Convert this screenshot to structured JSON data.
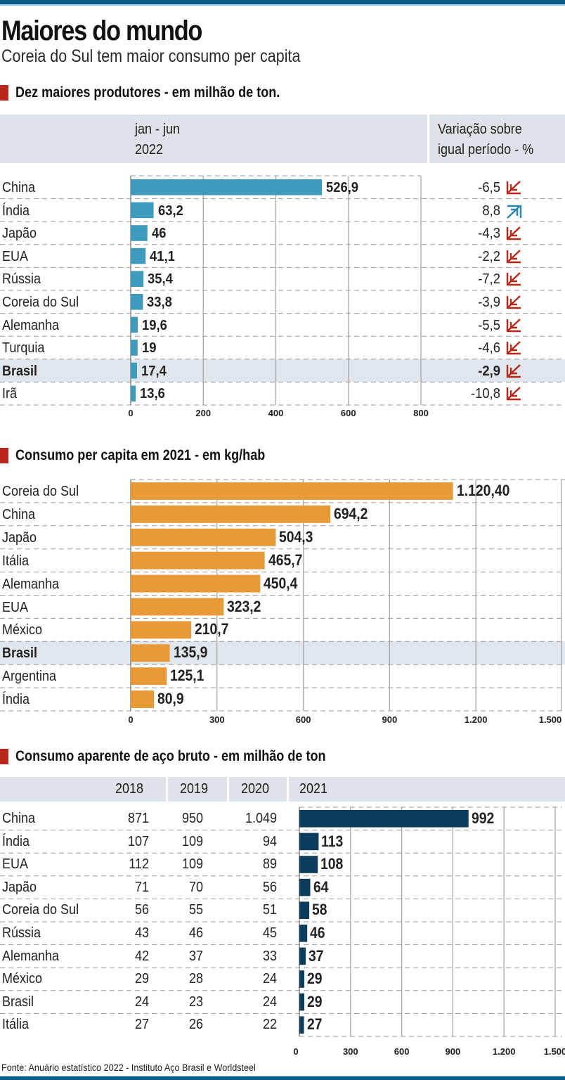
{
  "header": {
    "title": "Maiores do mundo",
    "subtitle": "Coreia do Sul tem maior consumo per capita"
  },
  "colors": {
    "topbar": "#0b5c87",
    "section_marker": "#b8281a",
    "band": "#dde3e9",
    "chart1_bar": "#3e9bbd",
    "chart2_bar": "#e89a36",
    "chart3_bar": "#0c3d5c",
    "arrow_down": "#b8281a",
    "arrow_up": "#2c86b0"
  },
  "footer": {
    "source": "Fonte: Anuário estatístico 2022 - Instituto Aço Brasil e Worldsteel"
  },
  "chart_data": [
    {
      "type": "bar",
      "orientation": "horizontal",
      "title": "Dez maiores produtores - em milhão de ton.",
      "column_header_1": "jan - jun",
      "column_header_2": "2022",
      "variation_header_1": "Variação sobre",
      "variation_header_2": "igual período - %",
      "categories": [
        "China",
        "Índia",
        "Japão",
        "EUA",
        "Rússia",
        "Coreia do Sul",
        "Alemanha",
        "Turquia",
        "Brasil",
        "Irã"
      ],
      "values": [
        526.9,
        63.2,
        46,
        41.1,
        35.4,
        33.8,
        19.6,
        19,
        17.4,
        13.6
      ],
      "value_labels": [
        "526,9",
        "63,2",
        "46",
        "41,1",
        "35,4",
        "33,8",
        "19,6",
        "19",
        "17,4",
        "13,6"
      ],
      "variation": [
        -6.5,
        8.8,
        -4.3,
        -2.2,
        -7.2,
        -3.9,
        -5.5,
        -4.6,
        -2.9,
        -10.8
      ],
      "variation_labels": [
        "-6,5",
        "8,8",
        "-4,3",
        "-2,2",
        "-7,2",
        "-3,9",
        "-5,5",
        "-4,6",
        "-2,9",
        "-10,8"
      ],
      "variation_direction": [
        "down",
        "up",
        "down",
        "down",
        "down",
        "down",
        "down",
        "down",
        "down",
        "down"
      ],
      "highlight": "Brasil",
      "xlim": [
        0,
        800
      ],
      "xticks": [
        0,
        200,
        400,
        600,
        800
      ],
      "xtick_labels": [
        "0",
        "200",
        "400",
        "600",
        "800"
      ],
      "grid": true
    },
    {
      "type": "bar",
      "orientation": "horizontal",
      "title": "Consumo per capita em 2021 - em kg/hab",
      "categories": [
        "Coreia do Sul",
        "China",
        "Japão",
        "Itália",
        "Alemanha",
        "EUA",
        "México",
        "Brasil",
        "Argentina",
        "Índia"
      ],
      "values": [
        1120.4,
        694.2,
        504.3,
        465.7,
        450.4,
        323.2,
        210.7,
        135.9,
        125.1,
        80.9
      ],
      "value_labels": [
        "1.120,40",
        "694,2",
        "504,3",
        "465,7",
        "450,4",
        "323,2",
        "210,7",
        "135,9",
        "125,1",
        "80,9"
      ],
      "highlight": "Brasil",
      "xlim": [
        0,
        1500
      ],
      "xticks": [
        0,
        300,
        600,
        900,
        1200,
        1500
      ],
      "xtick_labels": [
        "0",
        "300",
        "600",
        "900",
        "1.200",
        "1.500"
      ],
      "grid": true
    },
    {
      "type": "table",
      "title": "Consumo aparente de aço bruto - em milhão de ton",
      "columns": [
        "2018",
        "2019",
        "2020",
        "2021"
      ],
      "categories": [
        "China",
        "Índia",
        "EUA",
        "Japão",
        "Coreia do Sul",
        "Rússia",
        "Alemanha",
        "México",
        "Brasil",
        "Itália"
      ],
      "rows": [
        {
          "country": "China",
          "y2018": "871",
          "y2019": "950",
          "y2020": "1.049",
          "y2021": 992,
          "y2021_label": "992"
        },
        {
          "country": "Índia",
          "y2018": "107",
          "y2019": "109",
          "y2020": "94",
          "y2021": 113,
          "y2021_label": "113"
        },
        {
          "country": "EUA",
          "y2018": "112",
          "y2019": "109",
          "y2020": "89",
          "y2021": 108,
          "y2021_label": "108"
        },
        {
          "country": "Japão",
          "y2018": "71",
          "y2019": "70",
          "y2020": "56",
          "y2021": 64,
          "y2021_label": "64"
        },
        {
          "country": "Coreia do Sul",
          "y2018": "56",
          "y2019": "55",
          "y2020": "51",
          "y2021": 58,
          "y2021_label": "58"
        },
        {
          "country": "Rússia",
          "y2018": "43",
          "y2019": "46",
          "y2020": "45",
          "y2021": 46,
          "y2021_label": "46"
        },
        {
          "country": "Alemanha",
          "y2018": "42",
          "y2019": "37",
          "y2020": "33",
          "y2021": 37,
          "y2021_label": "37"
        },
        {
          "country": "México",
          "y2018": "29",
          "y2019": "28",
          "y2020": "24",
          "y2021": 29,
          "y2021_label": "29"
        },
        {
          "country": "Brasil",
          "y2018": "24",
          "y2019": "23",
          "y2020": "24",
          "y2021": 29,
          "y2021_label": "29"
        },
        {
          "country": "Itália",
          "y2018": "27",
          "y2019": "26",
          "y2020": "22",
          "y2021": 27,
          "y2021_label": "27"
        }
      ],
      "bar_series": "2021",
      "xlim": [
        0,
        1500
      ],
      "xticks": [
        0,
        300,
        600,
        900,
        1200,
        1500
      ],
      "xtick_labels": [
        "0",
        "300",
        "600",
        "900",
        "1.200",
        "1.500"
      ],
      "grid": true
    }
  ]
}
